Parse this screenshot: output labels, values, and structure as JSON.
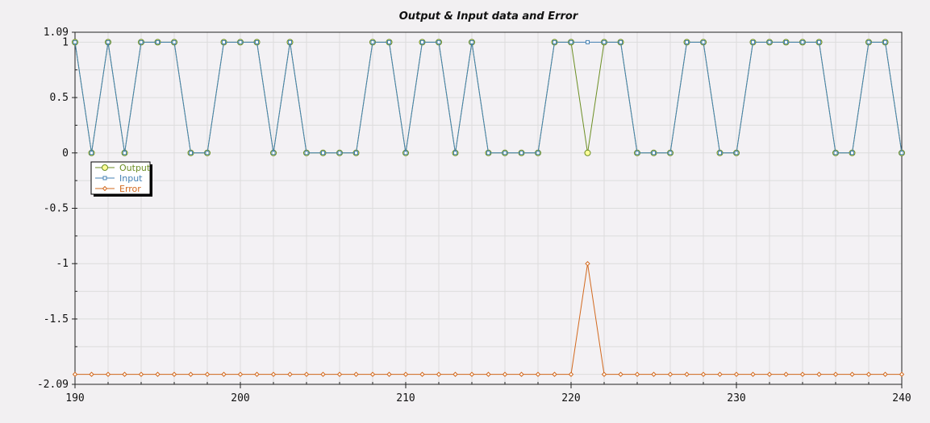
{
  "chart_data": {
    "type": "line",
    "title": "Output & Input data and Error",
    "xlabel": "",
    "ylabel": "",
    "xlim": [
      190,
      240
    ],
    "ylim": [
      -2.09,
      1.09
    ],
    "grid": true,
    "legend_position": "top-left",
    "x_tick_labels": [
      "190",
      "200",
      "210",
      "220",
      "230",
      "240"
    ],
    "x_tick_values": [
      190,
      200,
      210,
      220,
      230,
      240
    ],
    "y_tick_labels": [
      "1.09",
      "1",
      "0.5",
      "0",
      "-0.5",
      "-1",
      "-1.5",
      "-2.09"
    ],
    "y_tick_values": [
      1.09,
      1,
      0.5,
      0,
      -0.5,
      -1,
      -1.5,
      -2.09
    ],
    "x": [
      190,
      191,
      192,
      193,
      194,
      195,
      196,
      197,
      198,
      199,
      200,
      201,
      202,
      203,
      204,
      205,
      206,
      207,
      208,
      209,
      210,
      211,
      212,
      213,
      214,
      215,
      216,
      217,
      218,
      219,
      220,
      221,
      222,
      223,
      224,
      225,
      226,
      227,
      228,
      229,
      230,
      231,
      232,
      233,
      234,
      235,
      236,
      237,
      238,
      239,
      240
    ],
    "series": [
      {
        "name": "Output",
        "color": "#6b8e23",
        "marker": "circle",
        "values": [
          1,
          0,
          1,
          0,
          1,
          1,
          1,
          0,
          0,
          1,
          1,
          1,
          0,
          1,
          0,
          0,
          0,
          0,
          1,
          1,
          0,
          1,
          1,
          0,
          1,
          0,
          0,
          0,
          0,
          1,
          1,
          0,
          1,
          1,
          0,
          0,
          0,
          1,
          1,
          0,
          0,
          1,
          1,
          1,
          1,
          1,
          0,
          0,
          1,
          1,
          0
        ]
      },
      {
        "name": "Input",
        "color": "#4682b4",
        "marker": "square",
        "values": [
          1,
          0,
          1,
          0,
          1,
          1,
          1,
          0,
          0,
          1,
          1,
          1,
          0,
          1,
          0,
          0,
          0,
          0,
          1,
          1,
          0,
          1,
          1,
          0,
          1,
          0,
          0,
          0,
          0,
          1,
          1,
          1,
          1,
          1,
          0,
          0,
          0,
          1,
          1,
          0,
          0,
          1,
          1,
          1,
          1,
          1,
          0,
          0,
          1,
          1,
          0
        ]
      },
      {
        "name": "Error",
        "color": "#d2691e",
        "marker": "diamond",
        "values": [
          -2,
          -2,
          -2,
          -2,
          -2,
          -2,
          -2,
          -2,
          -2,
          -2,
          -2,
          -2,
          -2,
          -2,
          -2,
          -2,
          -2,
          -2,
          -2,
          -2,
          -2,
          -2,
          -2,
          -2,
          -2,
          -2,
          -2,
          -2,
          -2,
          -2,
          -2,
          -1,
          -2,
          -2,
          -2,
          -2,
          -2,
          -2,
          -2,
          -2,
          -2,
          -2,
          -2,
          -2,
          -2,
          -2,
          -2,
          -2,
          -2,
          -2,
          -2
        ]
      }
    ]
  }
}
